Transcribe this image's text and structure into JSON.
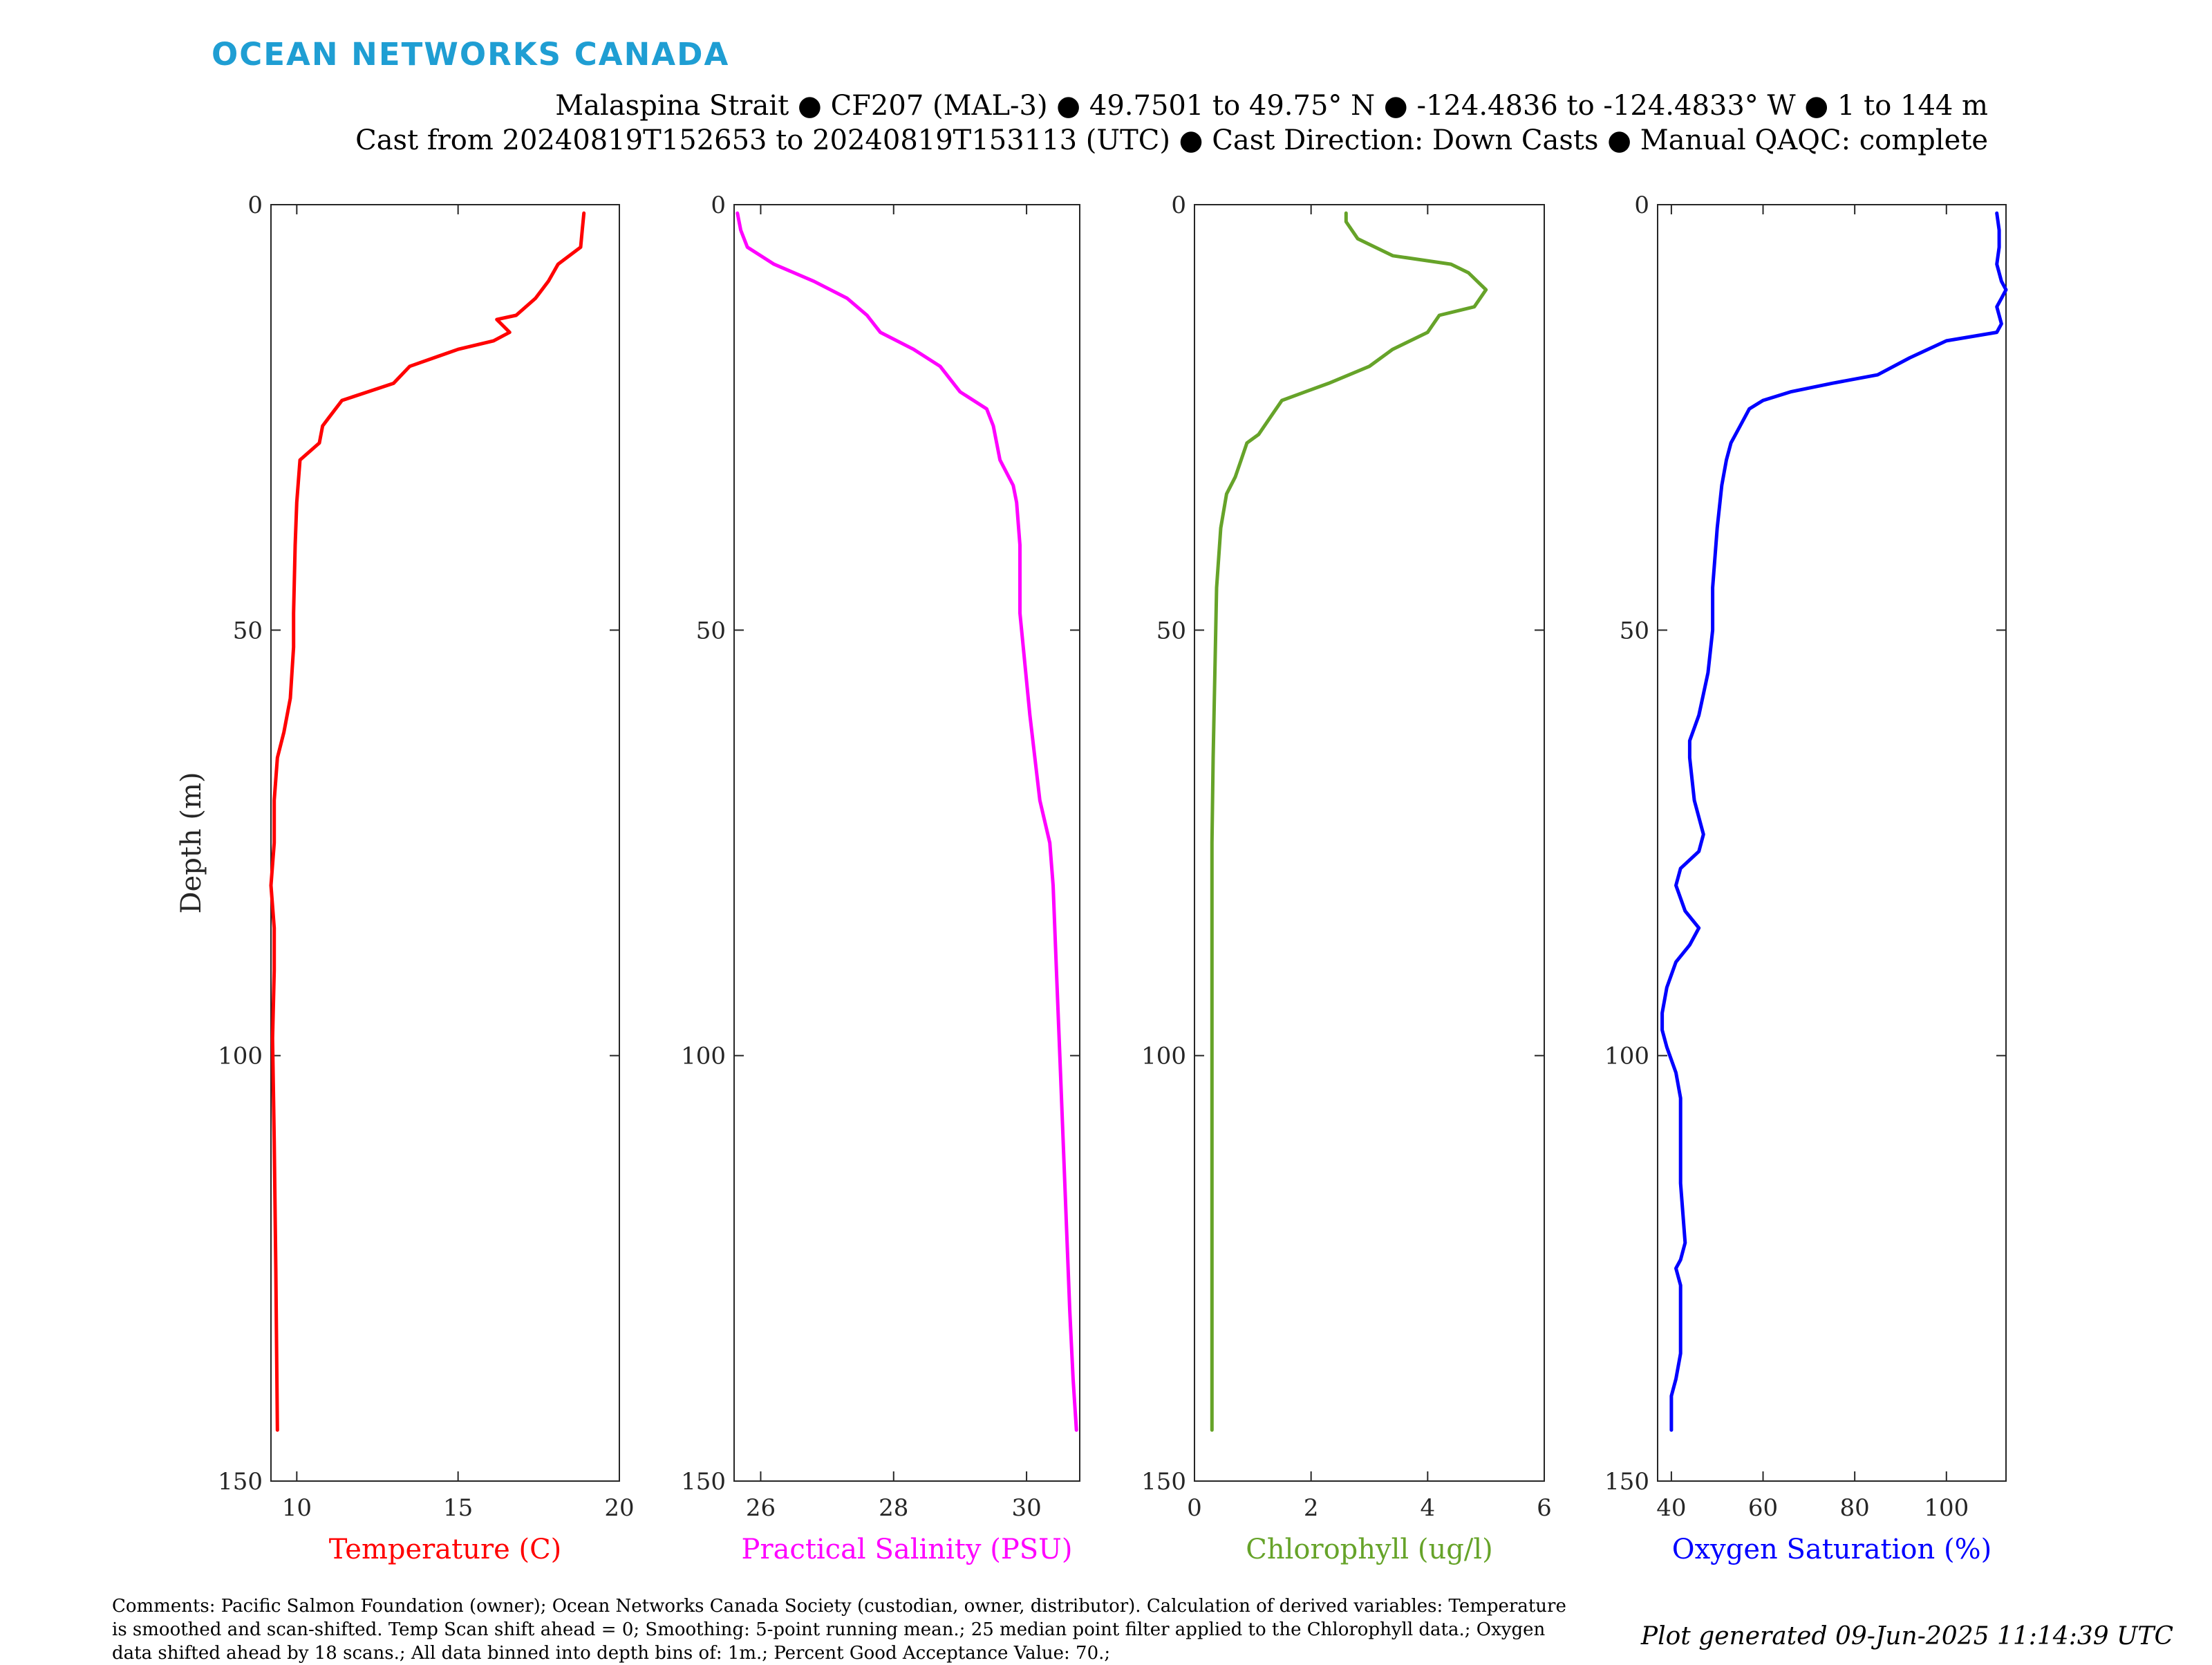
{
  "brand": {
    "name": "OCEAN NETWORKS CANADA"
  },
  "header": {
    "line1": "Malaspina Strait ● CF207 (MAL-3) ● 49.7501 to 49.75° N ● -124.4836 to -124.4833° W ● 1 to 144 m",
    "line2": "Cast from 20240819T152653 to 20240819T153113 (UTC) ● Cast Direction: Down Casts ● Manual QAQC: complete"
  },
  "footer": {
    "comments": "Comments: Pacific Salmon Foundation (owner); Ocean Networks Canada Society (custodian, owner, distributor). Calculation of derived variables: Temperature is smoothed and scan-shifted. Temp Scan shift ahead = 0; Smoothing: 5-point running mean.; 25 median point filter applied to the Chlorophyll data.; Oxygen data shifted ahead by 18 scans.; All data binned into depth bins of: 1m.; Percent Good Acceptance Value: 70.;",
    "generated": "Plot generated 09-Jun-2025 11:14:39 UTC"
  },
  "chart_data": [
    {
      "type": "line",
      "xlabel": "Temperature (C)",
      "ylabel": "Depth (m)",
      "color": "#ff0000",
      "xlim": [
        9.2,
        20
      ],
      "ylim": [
        0,
        150
      ],
      "y_reversed": true,
      "xticks": [
        10,
        15,
        20
      ],
      "yticks": [
        0,
        50,
        100,
        150
      ],
      "series": [
        {
          "x": [
            18.9,
            18.85,
            18.8,
            18.1,
            17.8,
            17.4,
            16.8,
            16.2,
            16.6,
            16.1,
            15.0,
            13.5,
            13.0,
            12.2,
            11.4,
            11.0,
            10.8,
            10.7,
            10.1,
            10.0,
            9.95,
            9.9,
            9.9,
            9.8,
            9.6,
            9.4,
            9.3,
            9.3,
            9.2,
            9.3,
            9.3,
            9.25,
            9.3,
            9.35,
            9.4
          ],
          "y": [
            1,
            3,
            5,
            7,
            9,
            11,
            13,
            13.5,
            15,
            16,
            17,
            19,
            21,
            22,
            23,
            25,
            26,
            28,
            30,
            35,
            40,
            48,
            52,
            58,
            62,
            65,
            70,
            75,
            80,
            85,
            90,
            98,
            110,
            125,
            144
          ]
        }
      ]
    },
    {
      "type": "line",
      "xlabel": "Practical Salinity (PSU)",
      "ylabel": "",
      "color": "#ff00ff",
      "xlim": [
        25.6,
        30.8
      ],
      "ylim": [
        0,
        150
      ],
      "y_reversed": true,
      "xticks": [
        26,
        28,
        30
      ],
      "yticks": [
        0,
        50,
        100,
        150
      ],
      "series": [
        {
          "x": [
            25.65,
            25.7,
            25.8,
            26.2,
            26.8,
            27.3,
            27.6,
            27.8,
            28.3,
            28.7,
            28.9,
            29.0,
            29.4,
            29.5,
            29.6,
            29.8,
            29.85,
            29.9,
            29.9,
            29.95,
            30.05,
            30.2,
            30.35,
            30.4,
            30.45,
            30.5,
            30.55,
            30.6,
            30.65,
            30.7,
            30.75
          ],
          "y": [
            1,
            3,
            5,
            7,
            9,
            11,
            13,
            15,
            17,
            19,
            21,
            22,
            24,
            26,
            30,
            33,
            35,
            40,
            48,
            52,
            60,
            70,
            75,
            80,
            90,
            100,
            110,
            120,
            130,
            138,
            144
          ]
        }
      ]
    },
    {
      "type": "line",
      "xlabel": "Chlorophyll (ug/l)",
      "ylabel": "",
      "color": "#66a329",
      "xlim": [
        0,
        6
      ],
      "ylim": [
        0,
        150
      ],
      "y_reversed": true,
      "xticks": [
        0,
        2,
        4,
        6
      ],
      "yticks": [
        0,
        50,
        100,
        150
      ],
      "series": [
        {
          "x": [
            2.6,
            2.6,
            2.8,
            3.4,
            4.4,
            4.7,
            5.0,
            4.8,
            4.2,
            4.0,
            3.4,
            3.0,
            2.3,
            1.9,
            1.5,
            1.3,
            1.1,
            0.9,
            0.8,
            0.7,
            0.55,
            0.45,
            0.38,
            0.35,
            0.32,
            0.3,
            0.3,
            0.3,
            0.3,
            0.3,
            0.3
          ],
          "y": [
            1,
            2,
            4,
            6,
            7,
            8,
            10,
            12,
            13,
            15,
            17,
            19,
            21,
            22,
            23,
            25,
            27,
            28,
            30,
            32,
            34,
            38,
            45,
            55,
            65,
            75,
            85,
            100,
            115,
            130,
            144
          ]
        }
      ]
    },
    {
      "type": "line",
      "xlabel": "Oxygen Saturation (%)",
      "ylabel": "",
      "color": "#0000ff",
      "xlim": [
        37,
        113
      ],
      "ylim": [
        0,
        150
      ],
      "y_reversed": true,
      "xticks": [
        40,
        60,
        80,
        100
      ],
      "yticks": [
        0,
        50,
        100,
        150
      ],
      "series": [
        {
          "x": [
            111,
            111.5,
            111.5,
            111,
            112,
            113,
            112,
            111,
            112,
            111,
            100,
            92,
            85,
            75,
            66,
            60,
            57,
            55,
            53,
            52,
            51,
            50,
            49,
            49,
            48,
            46,
            44,
            44,
            45,
            47,
            46,
            42,
            41,
            43,
            46,
            44,
            41,
            39,
            38,
            38,
            39,
            41,
            42,
            42,
            43,
            42,
            41,
            42,
            42,
            41,
            40,
            40
          ],
          "y": [
            1,
            3,
            5,
            7,
            9,
            10,
            11,
            12,
            14,
            15,
            16,
            18,
            20,
            21,
            22,
            23,
            24,
            26,
            28,
            30,
            33,
            38,
            45,
            50,
            55,
            60,
            63,
            65,
            70,
            74,
            76,
            78,
            80,
            83,
            85,
            87,
            89,
            92,
            95,
            97,
            99,
            102,
            105,
            115,
            122,
            124,
            125,
            127,
            135,
            138,
            140,
            144
          ]
        }
      ]
    }
  ]
}
